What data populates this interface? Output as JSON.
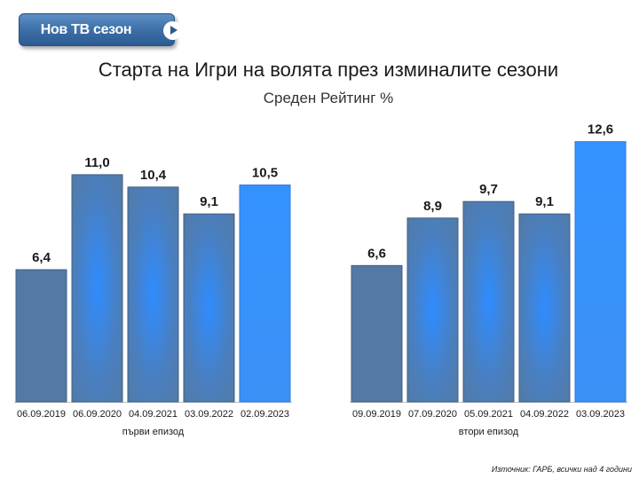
{
  "button": {
    "label": "Нов ТВ сезон",
    "icon": "play-icon"
  },
  "title": "Старта на Игри на волята през изминалите сезони",
  "subtitle": "Среден Рейтинг %",
  "source": "Източник: ГАРБ, всички над 4 години",
  "colors": {
    "bar_dark": "#5479a3",
    "bar_mid": "#3f88dd",
    "bar_bright": "#3492ff"
  },
  "chart_data": [
    {
      "type": "bar",
      "title": "",
      "xlabel": "първи епизод",
      "ylabel": "",
      "categories": [
        "06.09.2019",
        "06.09.2020",
        "04.09.2021",
        "03.09.2022",
        "02.09.2023"
      ],
      "values": [
        6.4,
        11.0,
        10.4,
        9.1,
        10.5
      ],
      "value_labels": [
        "6,4",
        "11,0",
        "10,4",
        "9,1",
        "10,5"
      ],
      "ylim": [
        0,
        13.4
      ],
      "grid": false
    },
    {
      "type": "bar",
      "title": "",
      "xlabel": "втори епизод",
      "ylabel": "",
      "categories": [
        "09.09.2019",
        "07.09.2020",
        "05.09.2021",
        "04.09.2022",
        "03.09.2023"
      ],
      "values": [
        6.6,
        8.9,
        9.7,
        9.1,
        12.6
      ],
      "value_labels": [
        "6,6",
        "8,9",
        "9,7",
        "9,1",
        "12,6"
      ],
      "ylim": [
        0,
        13.4
      ],
      "grid": false
    }
  ]
}
